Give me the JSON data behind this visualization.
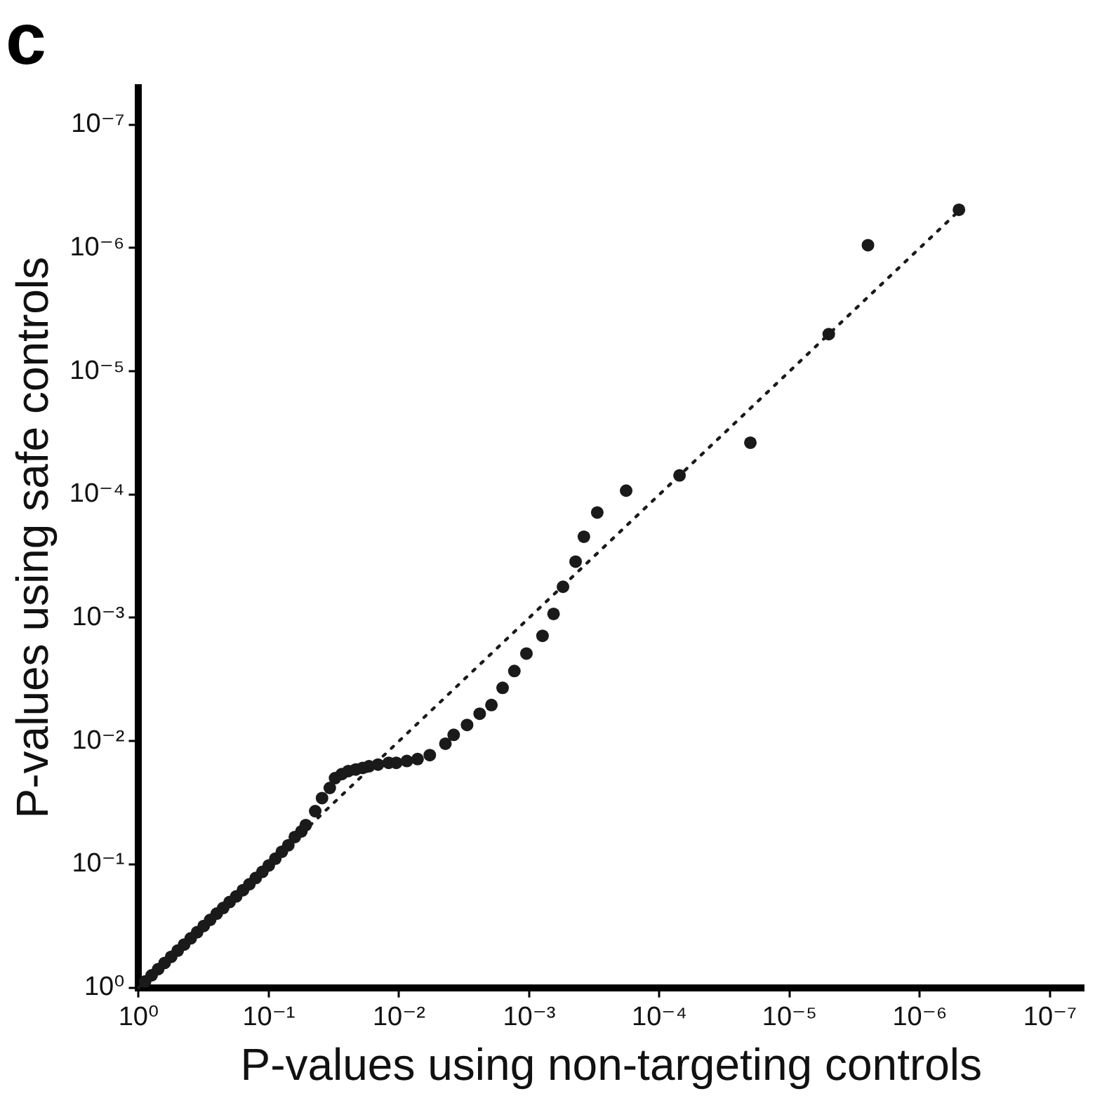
{
  "chart_data": {
    "type": "scatter",
    "title": "c",
    "xlabel": "P-values using non-targeting controls",
    "ylabel": "P-values using safe controls",
    "log": "xy",
    "marker": "circle",
    "xlim": [
      1,
      5.5e-08
    ],
    "ylim": [
      1,
      5e-08
    ],
    "xticks": [
      {
        "value": 1,
        "label": "10⁰"
      },
      {
        "value": 0.1,
        "label": "10⁻¹"
      },
      {
        "value": 0.01,
        "label": "10⁻²"
      },
      {
        "value": 0.001,
        "label": "10⁻³"
      },
      {
        "value": 0.0001,
        "label": "10⁻⁴"
      },
      {
        "value": 1e-05,
        "label": "10⁻⁵"
      },
      {
        "value": 1e-06,
        "label": "10⁻⁶"
      },
      {
        "value": 1e-07,
        "label": "10⁻⁷"
      }
    ],
    "yticks": [
      {
        "value": 1,
        "label": "10⁰"
      },
      {
        "value": 0.1,
        "label": "10⁻¹"
      },
      {
        "value": 0.01,
        "label": "10⁻²"
      },
      {
        "value": 0.001,
        "label": "10⁻³"
      },
      {
        "value": 0.0001,
        "label": "10⁻⁴"
      },
      {
        "value": 1e-05,
        "label": "10⁻⁵"
      },
      {
        "value": 1e-06,
        "label": "10⁻⁶"
      },
      {
        "value": 1e-07,
        "label": "10⁻⁷"
      }
    ],
    "series": [
      {
        "color": "#1a1a1a",
        "x": [
          0.891,
          0.794,
          0.708,
          0.631,
          0.562,
          0.501,
          0.447,
          0.398,
          0.355,
          0.316,
          0.282,
          0.251,
          0.224,
          0.2,
          0.178,
          0.158,
          0.141,
          0.126,
          0.112,
          0.1,
          0.0891,
          0.0794,
          0.0708,
          0.0631,
          0.0562,
          0.052,
          0.044,
          0.039,
          0.034,
          0.031,
          0.0275,
          0.0245,
          0.0215,
          0.019,
          0.017,
          0.0145,
          0.012,
          0.0105,
          0.0087,
          0.0072,
          0.0058,
          0.0044,
          0.0038,
          0.003,
          0.0024,
          0.00195,
          0.0016,
          0.0013,
          0.00105,
          0.00079,
          0.00065,
          0.00055,
          0.00044,
          0.00038,
          0.0003,
          0.00018,
          7e-05,
          2e-05,
          5e-06,
          2.5e-06,
          5e-07
        ],
        "values": [
          0.891,
          0.794,
          0.708,
          0.631,
          0.562,
          0.501,
          0.447,
          0.398,
          0.355,
          0.316,
          0.282,
          0.251,
          0.226,
          0.202,
          0.182,
          0.162,
          0.145,
          0.129,
          0.115,
          0.102,
          0.09,
          0.079,
          0.07,
          0.06,
          0.054,
          0.048,
          0.037,
          0.029,
          0.024,
          0.02,
          0.0185,
          0.0175,
          0.017,
          0.0165,
          0.016,
          0.0155,
          0.015,
          0.015,
          0.0145,
          0.014,
          0.013,
          0.0105,
          0.0089,
          0.0074,
          0.006,
          0.0051,
          0.0037,
          0.0027,
          0.00195,
          0.0014,
          0.00093,
          0.00056,
          0.00035,
          0.00022,
          0.00014,
          9.3e-05,
          7e-05,
          3.8e-05,
          5e-06,
          9.5e-07,
          4.9e-07
        ]
      },
      {
        "type": "line",
        "color": "#1a1a1a",
        "marker": "none",
        "line_style": "dotted",
        "x": [
          1,
          5e-07
        ],
        "values": [
          1,
          5e-07
        ]
      }
    ]
  }
}
